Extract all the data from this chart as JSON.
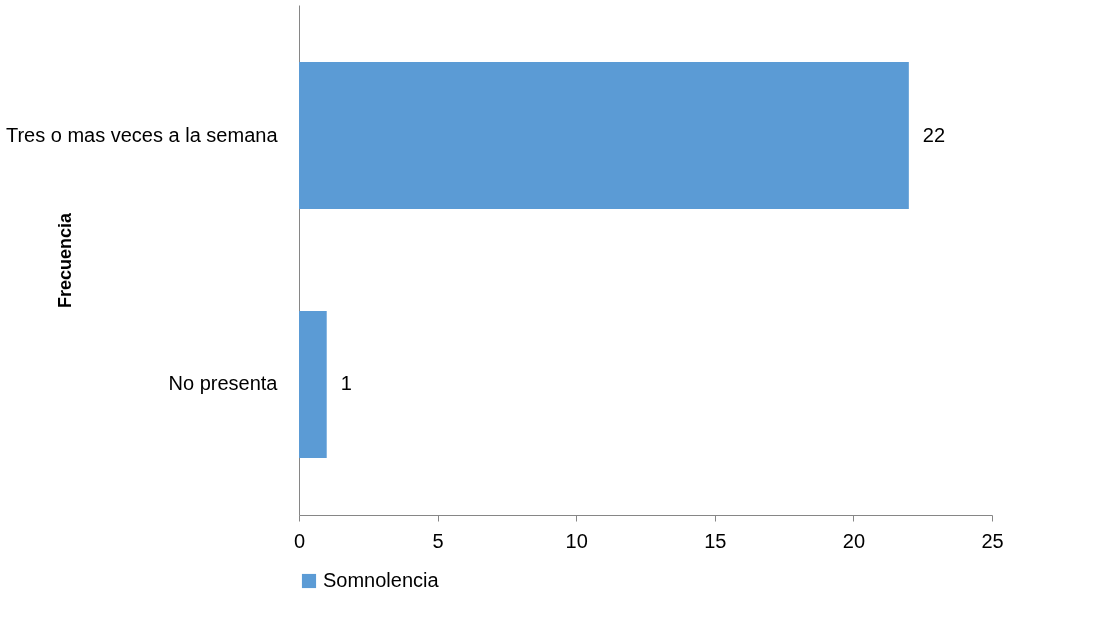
{
  "chart_data": {
    "type": "bar",
    "orientation": "horizontal",
    "ylabel": "Frecuencia",
    "categories": [
      "Tres o mas veces a la semana",
      "No presenta"
    ],
    "series": [
      {
        "name": "Somnolencia",
        "color": "#5b9bd5",
        "values": [
          22,
          1
        ]
      }
    ],
    "xlim": [
      0,
      25
    ],
    "xticks": [
      0,
      5,
      10,
      15,
      20,
      25
    ],
    "grid": false,
    "legend": "bottom",
    "data_labels": true
  }
}
